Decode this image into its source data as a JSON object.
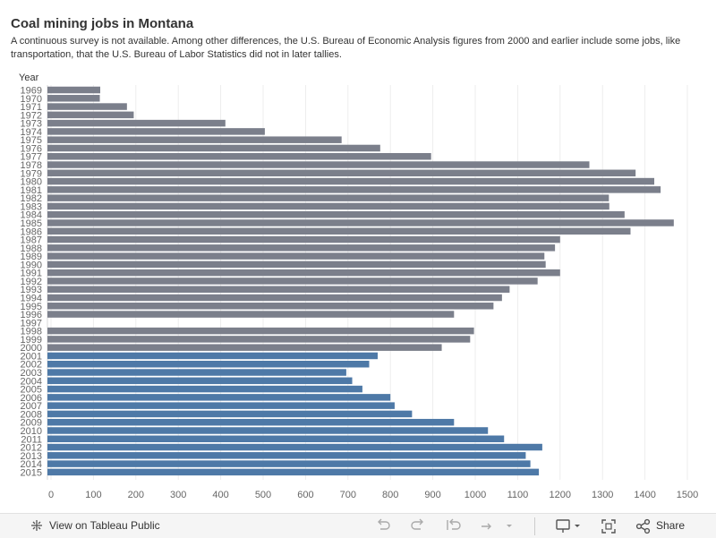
{
  "title": "Coal mining jobs in Montana",
  "subtitle": "A continuous survey is not available. Among other differences, the U.S. Bureau of Economic Analysis figures from 2000 and earlier include some jobs, like transportation, that the U.S. Bureau of Labor Statistics did not in later tallies.",
  "chart_data": {
    "type": "bar",
    "orientation": "horizontal",
    "title": "Coal mining jobs in Montana",
    "ylabel": "Year",
    "xlabel": "",
    "xlim": [
      0,
      1550
    ],
    "xticks": [
      0,
      100,
      200,
      300,
      400,
      500,
      600,
      700,
      800,
      900,
      1000,
      1100,
      1200,
      1300,
      1400,
      1500
    ],
    "grid": true,
    "series": [
      {
        "name": "U.S. Bureau of Economic Analysis",
        "color": "#7b7f8b",
        "categories": [
          "1969",
          "1970",
          "1971",
          "1972",
          "1973",
          "1974",
          "1975",
          "1976",
          "1977",
          "1978",
          "1979",
          "1980",
          "1981",
          "1982",
          "1983",
          "1984",
          "1985",
          "1986",
          "1987",
          "1988",
          "1989",
          "1990",
          "1991",
          "1992",
          "1993",
          "1994",
          "1995",
          "1996",
          "1997",
          "1998",
          "1999",
          "2000"
        ],
        "values": [
          116,
          115,
          179,
          195,
          411,
          504,
          685,
          776,
          896,
          1269,
          1378,
          1422,
          1437,
          1315,
          1316,
          1352,
          1468,
          1366,
          1200,
          1188,
          1163,
          1166,
          1200,
          1147,
          1081,
          1063,
          1043,
          950,
          null,
          997,
          988,
          921
        ]
      },
      {
        "name": "U.S. Bureau of Labor Statistics",
        "color": "#4e79a7",
        "categories": [
          "2001",
          "2002",
          "2003",
          "2004",
          "2005",
          "2006",
          "2007",
          "2008",
          "2009",
          "2010",
          "2011",
          "2012",
          "2013",
          "2014",
          "2015"
        ],
        "values": [
          770,
          750,
          696,
          710,
          734,
          800,
          810,
          851,
          950,
          1030,
          1068,
          1158,
          1119,
          1130,
          1150
        ]
      }
    ]
  },
  "footer": {
    "view_label": "View on Tableau Public",
    "share_label": "Share",
    "icons": {
      "tableau": "tableau-logo-icon",
      "undo": "undo-icon",
      "redo": "redo-icon",
      "revert": "revert-icon",
      "refresh": "refresh-icon",
      "download": "download-icon",
      "fullscreen": "fullscreen-icon",
      "share": "share-icon"
    }
  }
}
